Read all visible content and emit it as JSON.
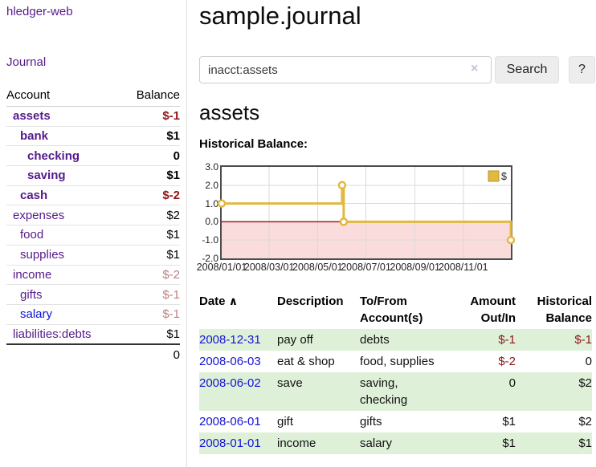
{
  "app": {
    "brand": "hledger-web",
    "nav_journal": "Journal"
  },
  "sidebar": {
    "accounts_header": {
      "account": "Account",
      "balance": "Balance"
    },
    "accounts": [
      {
        "name": "assets",
        "depth": 0,
        "bold": true,
        "link_color": "purple",
        "balance": "$-1",
        "balance_style": "neg-strong"
      },
      {
        "name": "bank",
        "depth": 1,
        "bold": true,
        "link_color": "purple",
        "balance": "$1",
        "balance_style": "pos"
      },
      {
        "name": "checking",
        "depth": 2,
        "bold": true,
        "link_color": "purple",
        "balance": "0",
        "balance_style": "pos"
      },
      {
        "name": "saving",
        "depth": 2,
        "bold": true,
        "link_color": "purple",
        "balance": "$1",
        "balance_style": "pos"
      },
      {
        "name": "cash",
        "depth": 1,
        "bold": true,
        "link_color": "purple",
        "balance": "$-2",
        "balance_style": "neg-strong"
      },
      {
        "name": "expenses",
        "depth": 0,
        "bold": false,
        "link_color": "purple",
        "balance": "$2",
        "balance_style": "pos"
      },
      {
        "name": "food",
        "depth": 1,
        "bold": false,
        "link_color": "purple",
        "balance": "$1",
        "balance_style": "pos"
      },
      {
        "name": "supplies",
        "depth": 1,
        "bold": false,
        "link_color": "purple",
        "balance": "$1",
        "balance_style": "pos"
      },
      {
        "name": "income",
        "depth": 0,
        "bold": false,
        "link_color": "purple",
        "balance": "$-2",
        "balance_style": "neg-muted"
      },
      {
        "name": "gifts",
        "depth": 1,
        "bold": false,
        "link_color": "purple",
        "balance": "$-1",
        "balance_style": "neg-muted"
      },
      {
        "name": "salary",
        "depth": 1,
        "bold": false,
        "link_color": "blue",
        "balance": "$-1",
        "balance_style": "neg-muted"
      },
      {
        "name": "liabilities:debts",
        "depth": 0,
        "bold": false,
        "link_color": "purple",
        "balance": "$1",
        "balance_style": "pos"
      }
    ],
    "total": "0"
  },
  "header": {
    "title": "sample.journal"
  },
  "search": {
    "value": "inacct:assets",
    "clear_icon": "×",
    "button_label": "Search",
    "help_label": "?"
  },
  "account_page": {
    "heading": "assets",
    "chart_label": "Historical Balance:"
  },
  "chart_data": {
    "type": "line",
    "step": true,
    "title": "Historical Balance:",
    "series": [
      {
        "name": "$",
        "points": [
          {
            "date": "2008-01-01",
            "value": 1
          },
          {
            "date": "2008-06-01",
            "value": 2
          },
          {
            "date": "2008-06-03",
            "value": 0
          },
          {
            "date": "2008-12-31",
            "value": -1
          }
        ]
      }
    ],
    "x_range": [
      "2008-01-01",
      "2008-12-31"
    ],
    "ylim": [
      -2,
      3
    ],
    "y_ticks": [
      {
        "v": 3,
        "label": "3.0"
      },
      {
        "v": 2,
        "label": "2.0"
      },
      {
        "v": 1,
        "label": "1.0"
      },
      {
        "v": 0,
        "label": "0.0"
      },
      {
        "v": -1,
        "label": "-1.0"
      },
      {
        "v": -2,
        "label": "-2.0"
      }
    ],
    "x_ticks": [
      {
        "date": "2008-01-01",
        "label": "2008/01/01"
      },
      {
        "date": "2008-03-01",
        "label": "2008/03/01"
      },
      {
        "date": "2008-05-01",
        "label": "2008/05/01"
      },
      {
        "date": "2008-07-01",
        "label": "2008/07/01"
      },
      {
        "date": "2008-09-01",
        "label": "2008/09/01"
      },
      {
        "date": "2008-11-01",
        "label": "2008/11/01"
      }
    ],
    "legend": {
      "label": "$",
      "position": "top-right"
    },
    "colors": {
      "line": "#e2b93e",
      "marker_fill": "#ffffff",
      "negative_region": "#fbdcdc",
      "zero_line": "#9e1a1a",
      "grid": "#dadada",
      "legend_fill": "#e2b93e",
      "legend_border": "#b8962e"
    },
    "grid": true
  },
  "register_table": {
    "headers": [
      "Date",
      "Description",
      "To/From Account(s)",
      "Amount Out/In",
      "Historical Balance"
    ],
    "date_caret": "∧",
    "rows": [
      {
        "date": "2008-12-31",
        "description": "pay off",
        "accounts": "debts",
        "amount": "$-1",
        "amount_negative": true,
        "balance": "$-1",
        "balance_negative": true
      },
      {
        "date": "2008-06-03",
        "description": "eat & shop",
        "accounts": "food, supplies",
        "amount": "$-2",
        "amount_negative": true,
        "balance": "0",
        "balance_negative": false
      },
      {
        "date": "2008-06-02",
        "description": "save",
        "accounts": "saving, checking",
        "amount": "0",
        "amount_negative": false,
        "balance": "$2",
        "balance_negative": false
      },
      {
        "date": "2008-06-01",
        "description": "gift",
        "accounts": "gifts",
        "amount": "$1",
        "amount_negative": false,
        "balance": "$2",
        "balance_negative": false
      },
      {
        "date": "2008-01-01",
        "description": "income",
        "accounts": "salary",
        "amount": "$1",
        "amount_negative": false,
        "balance": "$1",
        "balance_negative": false
      }
    ]
  }
}
